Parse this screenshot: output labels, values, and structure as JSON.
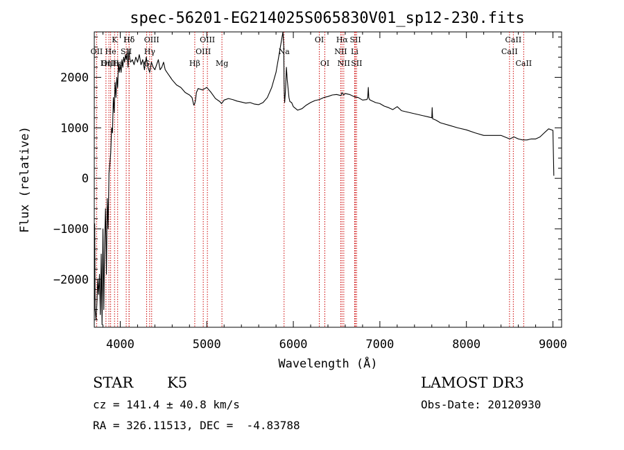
{
  "chart_data": {
    "type": "line",
    "title": "spec-56201-EG214025S065830V01_sp12-230.fits",
    "xlabel": "Wavelength (Å)",
    "ylabel": "Flux (relative)",
    "xlim": [
      3700,
      9100
    ],
    "ylim": [
      -2950,
      2900
    ],
    "xticks": [
      4000,
      5000,
      6000,
      7000,
      8000,
      9000
    ],
    "yticks": [
      -2000,
      -1000,
      0,
      1000,
      2000
    ],
    "series": [
      {
        "name": "flux",
        "x": [
          3700,
          3705,
          3710,
          3720,
          3730,
          3740,
          3750,
          3760,
          3770,
          3780,
          3790,
          3800,
          3810,
          3820,
          3830,
          3840,
          3850,
          3860,
          3870,
          3880,
          3890,
          3900,
          3910,
          3920,
          3930,
          3940,
          3950,
          3960,
          3970,
          3980,
          3990,
          4000,
          4010,
          4020,
          4030,
          4040,
          4050,
          4060,
          4070,
          4080,
          4090,
          4100,
          4110,
          4120,
          4140,
          4160,
          4180,
          4200,
          4220,
          4240,
          4260,
          4280,
          4300,
          4320,
          4340,
          4360,
          4380,
          4400,
          4420,
          4440,
          4460,
          4480,
          4500,
          4520,
          4540,
          4560,
          4580,
          4600,
          4650,
          4700,
          4750,
          4800,
          4830,
          4850,
          4861,
          4870,
          4880,
          4900,
          4950,
          5000,
          5050,
          5100,
          5150,
          5170,
          5180,
          5200,
          5250,
          5300,
          5350,
          5400,
          5450,
          5500,
          5550,
          5600,
          5650,
          5700,
          5750,
          5800,
          5830,
          5860,
          5880,
          5890,
          5893,
          5896,
          5900,
          5910,
          5920,
          5930,
          5950,
          5960,
          5980,
          6000,
          6050,
          6100,
          6150,
          6200,
          6250,
          6300,
          6350,
          6400,
          6450,
          6500,
          6550,
          6563,
          6580,
          6600,
          6650,
          6700,
          6750,
          6800,
          6850,
          6860,
          6866,
          6872,
          6880,
          6900,
          6950,
          7000,
          7050,
          7100,
          7150,
          7200,
          7250,
          7300,
          7400,
          7500,
          7550,
          7600,
          7604,
          7610,
          7650,
          7700,
          7800,
          7900,
          8000,
          8100,
          8200,
          8300,
          8400,
          8500,
          8550,
          8600,
          8650,
          8700,
          8750,
          8800,
          8850,
          8900,
          8950,
          9000,
          9010
        ],
        "y": [
          -2400,
          -900,
          -2600,
          -2800,
          -2500,
          -2000,
          -2300,
          -1900,
          -2700,
          -1500,
          -2900,
          -1000,
          -2600,
          -1200,
          -600,
          -1900,
          -400,
          -1000,
          100,
          300,
          500,
          1000,
          900,
          1600,
          1300,
          1900,
          1600,
          2000,
          1800,
          2300,
          2100,
          2250,
          2100,
          2350,
          2200,
          2400,
          2300,
          2450,
          2350,
          2500,
          2200,
          2550,
          2380,
          2300,
          2350,
          2250,
          2400,
          2300,
          2450,
          2250,
          2350,
          2150,
          2400,
          2200,
          2100,
          2300,
          2200,
          2150,
          2250,
          2350,
          2150,
          2200,
          2300,
          2150,
          2100,
          2050,
          2000,
          1950,
          1850,
          1800,
          1700,
          1650,
          1600,
          1450,
          1480,
          1550,
          1700,
          1780,
          1750,
          1800,
          1700,
          1580,
          1520,
          1480,
          1500,
          1550,
          1580,
          1560,
          1530,
          1510,
          1490,
          1500,
          1470,
          1460,
          1500,
          1600,
          1800,
          2100,
          2400,
          2700,
          2900,
          2600,
          1900,
          1650,
          1500,
          1750,
          2200,
          1950,
          1600,
          1520,
          1500,
          1420,
          1350,
          1380,
          1450,
          1500,
          1540,
          1560,
          1600,
          1620,
          1650,
          1660,
          1640,
          1700,
          1650,
          1680,
          1660,
          1620,
          1600,
          1550,
          1560,
          1600,
          1800,
          1600,
          1560,
          1540,
          1500,
          1480,
          1430,
          1400,
          1360,
          1420,
          1340,
          1320,
          1280,
          1240,
          1220,
          1200,
          1400,
          1180,
          1150,
          1100,
          1050,
          1000,
          960,
          900,
          850,
          850,
          850,
          780,
          820,
          780,
          760,
          760,
          780,
          780,
          820,
          900,
          980,
          950,
          50
        ]
      }
    ],
    "lines": [
      {
        "name": "Hδ",
        "x": 4102,
        "row": 0
      },
      {
        "name": "K",
        "x": 3934,
        "row": 0
      },
      {
        "name": "Hδ",
        "x": 4102,
        "row": 0
      },
      {
        "name": "OIII",
        "x": 4363,
        "row": 0
      },
      {
        "name": "OIII",
        "x": 5007,
        "row": 0
      },
      {
        "name": "OI",
        "x": 6300,
        "row": 0
      },
      {
        "name": "Hα",
        "x": 6563,
        "row": 0
      },
      {
        "name": "SII",
        "x": 6717,
        "row": 0
      },
      {
        "name": "CaII",
        "x": 8542,
        "row": 0
      },
      {
        "name": "OII",
        "x": 3727,
        "row": 1
      },
      {
        "name": "He",
        "x": 3889,
        "row": 1
      },
      {
        "name": "SII",
        "x": 4069,
        "row": 1
      },
      {
        "name": "Hγ",
        "x": 4340,
        "row": 1
      },
      {
        "name": "OIII",
        "x": 4959,
        "row": 1
      },
      {
        "name": "Na",
        "x": 5893,
        "row": 1
      },
      {
        "name": "NII",
        "x": 6548,
        "row": 1
      },
      {
        "name": "Li",
        "x": 6708,
        "row": 1
      },
      {
        "name": "CaII",
        "x": 8498,
        "row": 1
      },
      {
        "name": "OIII",
        "x": 3869,
        "row": 2
      },
      {
        "name": "Hη",
        "x": 3835,
        "row": 2
      },
      {
        "name": "Hε",
        "x": 3970,
        "row": 2
      },
      {
        "name": "G",
        "x": 4305,
        "row": 2
      },
      {
        "name": "Hβ",
        "x": 4861,
        "row": 2
      },
      {
        "name": "Mg",
        "x": 5175,
        "row": 2
      },
      {
        "name": "OI",
        "x": 6364,
        "row": 2
      },
      {
        "name": "NII",
        "x": 6583,
        "row": 2
      },
      {
        "name": "SII",
        "x": 6731,
        "row": 2
      },
      {
        "name": "CaII",
        "x": 8662,
        "row": 2
      }
    ],
    "line_color": "#cc0000",
    "grid": false
  },
  "info": {
    "object_class": "STAR",
    "subclass": "K5",
    "survey": "LAMOST DR3",
    "cz": "cz = 141.4 ± 40.8 km/s",
    "obs_date": "Obs-Date: 20120930",
    "coords": "RA = 326.11513, DEC =  -4.83788"
  }
}
